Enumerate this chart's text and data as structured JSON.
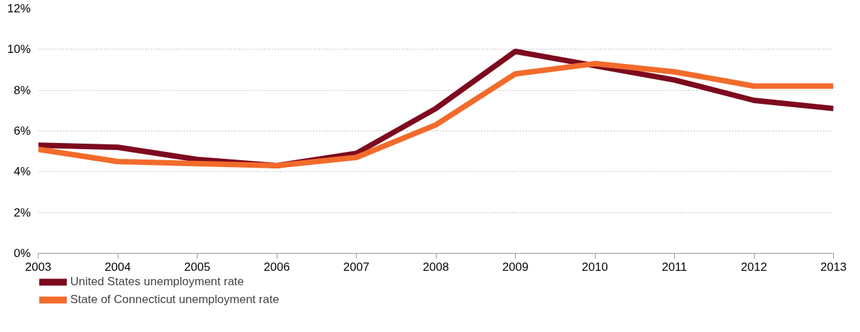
{
  "chart_data": {
    "type": "line",
    "x": [
      2003,
      2004,
      2005,
      2006,
      2007,
      2008,
      2009,
      2010,
      2011,
      2012,
      2013
    ],
    "series": [
      {
        "name": "United States unemployment rate",
        "color": "#7d0a1e",
        "values": [
          5.3,
          5.2,
          4.6,
          4.3,
          4.9,
          7.1,
          9.9,
          9.2,
          8.5,
          7.5,
          7.1
        ]
      },
      {
        "name": "State of Connecticut unemployment rate",
        "color": "#f26b2b",
        "values": [
          5.1,
          4.5,
          4.4,
          4.3,
          4.7,
          6.3,
          8.8,
          9.3,
          8.9,
          8.2,
          8.2
        ]
      }
    ],
    "xlim": [
      2003,
      2013
    ],
    "xticks": [
      2003,
      2004,
      2005,
      2006,
      2007,
      2008,
      2009,
      2010,
      2011,
      2012,
      2013
    ],
    "ylim": [
      0,
      12
    ],
    "yticks": [
      {
        "value": 0,
        "label": "0%"
      },
      {
        "value": 2,
        "label": "2%"
      },
      {
        "value": 4,
        "label": "4%"
      },
      {
        "value": 6,
        "label": "6%"
      },
      {
        "value": 8,
        "label": "8%"
      },
      {
        "value": 10,
        "label": "10%"
      },
      {
        "value": 12,
        "label": "12%"
      }
    ],
    "grid": "y",
    "legend": "bottom left",
    "marker": "none",
    "line_style": "solid"
  }
}
